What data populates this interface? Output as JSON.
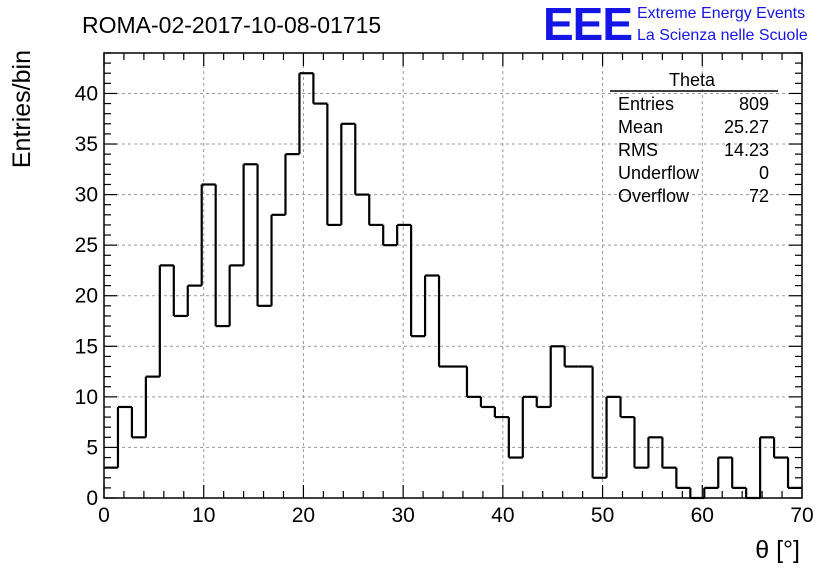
{
  "header": {
    "run_title": "ROMA-02-2017-10-08-01715",
    "logo": "EEE",
    "logo_line1": "Extreme Energy Events",
    "logo_line2": "La Scienza nelle Scuole"
  },
  "stats": {
    "name": "Theta",
    "rows": [
      {
        "label": "Entries",
        "value": "809"
      },
      {
        "label": "Mean",
        "value": "25.27"
      },
      {
        "label": "RMS",
        "value": "14.23"
      },
      {
        "label": "Underflow",
        "value": "0"
      },
      {
        "label": "Overflow",
        "value": "72"
      }
    ]
  },
  "chart_data": {
    "type": "histogram",
    "xlabel": "θ [°]",
    "ylabel": "Entries/bin",
    "xlim": [
      0,
      70
    ],
    "ylim": [
      0,
      44
    ],
    "x_ticks": [
      0,
      10,
      20,
      30,
      40,
      50,
      60,
      70
    ],
    "y_ticks": [
      0,
      5,
      10,
      15,
      20,
      25,
      30,
      35,
      40
    ],
    "grid": true,
    "bin_width": 1.4,
    "bin_edges_start": 0,
    "values": [
      3,
      9,
      6,
      12,
      23,
      18,
      21,
      31,
      17,
      23,
      33,
      19,
      28,
      34,
      42,
      39,
      27,
      37,
      30,
      27,
      25,
      27,
      16,
      22,
      13,
      13,
      10,
      9,
      8,
      4,
      10,
      9,
      15,
      13,
      13,
      2,
      10,
      8,
      3,
      6,
      3,
      1,
      0,
      1,
      4,
      1,
      0,
      6,
      4,
      1
    ],
    "line_color": "#000000"
  }
}
